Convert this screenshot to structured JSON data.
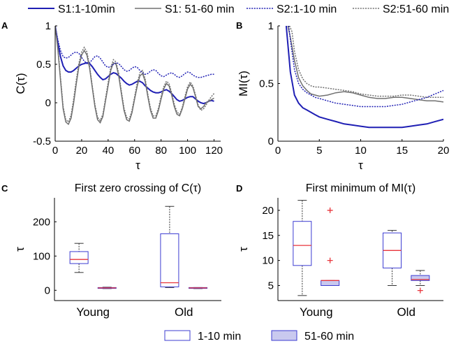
{
  "legend_top": [
    {
      "label": "S1:1-10min",
      "color": "#1f1fb4",
      "dash": "solid",
      "width": 2
    },
    {
      "label": "S1: 51-60 min",
      "color": "#707070",
      "dash": "solid",
      "width": 1.5
    },
    {
      "label": "S2:1-10 min",
      "color": "#1f1fb4",
      "dash": "dotted",
      "width": 1.5
    },
    {
      "label": "S2:51-60 min",
      "color": "#707070",
      "dash": "dotted",
      "width": 1.5
    }
  ],
  "legend_bottom": [
    {
      "label": "1-10 min",
      "fill": "#ffffff",
      "stroke": "#3c3cd2"
    },
    {
      "label": "51-60 min",
      "fill": "#c9c9ef",
      "stroke": "#3c3cd2"
    }
  ],
  "chart_data": [
    {
      "panel": "A",
      "type": "line",
      "title": "",
      "xlabel": "τ",
      "ylabel": "C(τ)",
      "xlim": [
        0,
        125
      ],
      "ylim": [
        -0.5,
        1
      ],
      "xticks": [
        0,
        20,
        40,
        60,
        80,
        100,
        120
      ],
      "yticks": [
        -0.5,
        0,
        0.5,
        1
      ],
      "series": [
        {
          "name": "S1:1-10min",
          "x": [
            0,
            2,
            4,
            6,
            8,
            10,
            12,
            14,
            16,
            18,
            20,
            22,
            24,
            26,
            28,
            30,
            32,
            34,
            36,
            38,
            40,
            42,
            44,
            46,
            48,
            50,
            52,
            54,
            56,
            58,
            60,
            62,
            64,
            66,
            68,
            70,
            72,
            74,
            76,
            78,
            80,
            82,
            84,
            86,
            88,
            90,
            92,
            94,
            96,
            98,
            100,
            102,
            104,
            106,
            108,
            110,
            112,
            114,
            116,
            118,
            120
          ],
          "y": [
            1,
            0.78,
            0.6,
            0.48,
            0.42,
            0.4,
            0.4,
            0.42,
            0.45,
            0.48,
            0.5,
            0.51,
            0.52,
            0.51,
            0.47,
            0.42,
            0.37,
            0.33,
            0.3,
            0.31,
            0.34,
            0.37,
            0.39,
            0.38,
            0.35,
            0.32,
            0.28,
            0.25,
            0.23,
            0.24,
            0.26,
            0.28,
            0.28,
            0.26,
            0.22,
            0.19,
            0.16,
            0.14,
            0.13,
            0.13,
            0.14,
            0.16,
            0.17,
            0.15,
            0.12,
            0.08,
            0.04,
            0.02,
            0.03,
            0.05,
            0.07,
            0.08,
            0.08,
            0.05,
            0.02,
            0.0,
            -0.01,
            0.0,
            0.02,
            0.03,
            0.02
          ]
        },
        {
          "name": "S1: 51-60 min",
          "x": [
            0,
            2,
            4,
            6,
            8,
            10,
            12,
            14,
            16,
            18,
            20,
            22,
            24,
            26,
            28,
            30,
            32,
            34,
            36,
            38,
            40,
            42,
            44,
            46,
            48,
            50,
            52,
            54,
            56,
            58,
            60,
            62,
            64,
            66,
            68,
            70,
            72,
            74,
            76,
            78,
            80,
            82,
            84,
            86,
            88,
            90,
            92,
            94,
            96,
            98,
            100,
            102,
            104,
            106,
            108,
            110,
            112,
            114,
            116,
            118,
            120
          ],
          "y": [
            1,
            0.7,
            0.3,
            -0.08,
            -0.25,
            -0.28,
            -0.2,
            0.0,
            0.25,
            0.48,
            0.62,
            0.68,
            0.62,
            0.45,
            0.2,
            -0.05,
            -0.22,
            -0.26,
            -0.18,
            0.02,
            0.22,
            0.42,
            0.52,
            0.5,
            0.35,
            0.12,
            -0.1,
            -0.22,
            -0.24,
            -0.13,
            0.05,
            0.22,
            0.35,
            0.38,
            0.28,
            0.08,
            -0.1,
            -0.2,
            -0.2,
            -0.1,
            0.05,
            0.18,
            0.25,
            0.22,
            0.1,
            -0.05,
            -0.15,
            -0.17,
            -0.08,
            0.05,
            0.18,
            0.24,
            0.2,
            0.08,
            -0.05,
            -0.08,
            -0.05,
            0.0,
            0.02,
            0.04,
            0.06
          ]
        },
        {
          "name": "S2:1-10 min",
          "x": [
            0,
            2,
            4,
            6,
            8,
            10,
            12,
            14,
            16,
            18,
            20,
            22,
            24,
            26,
            28,
            30,
            32,
            34,
            36,
            38,
            40,
            42,
            44,
            46,
            48,
            50,
            52,
            54,
            56,
            58,
            60,
            62,
            64,
            66,
            68,
            70,
            72,
            74,
            76,
            78,
            80,
            82,
            84,
            86,
            88,
            90,
            92,
            94,
            96,
            98,
            100,
            102,
            104,
            106,
            108,
            110,
            112,
            114,
            116,
            118,
            120
          ],
          "y": [
            1,
            0.82,
            0.68,
            0.6,
            0.58,
            0.59,
            0.62,
            0.65,
            0.66,
            0.64,
            0.59,
            0.54,
            0.51,
            0.52,
            0.56,
            0.6,
            0.61,
            0.58,
            0.53,
            0.48,
            0.46,
            0.47,
            0.5,
            0.52,
            0.51,
            0.47,
            0.43,
            0.41,
            0.42,
            0.45,
            0.47,
            0.46,
            0.42,
            0.39,
            0.37,
            0.38,
            0.41,
            0.43,
            0.42,
            0.38,
            0.35,
            0.34,
            0.36,
            0.38,
            0.39,
            0.37,
            0.34,
            0.33,
            0.35,
            0.38,
            0.4,
            0.39,
            0.36,
            0.34,
            0.33,
            0.33,
            0.34,
            0.35,
            0.36,
            0.37,
            0.37
          ]
        },
        {
          "name": "S2:51-60 min",
          "x": [
            0,
            2,
            4,
            6,
            8,
            10,
            12,
            14,
            16,
            18,
            20,
            22,
            24,
            26,
            28,
            30,
            32,
            34,
            36,
            38,
            40,
            42,
            44,
            46,
            48,
            50,
            52,
            54,
            56,
            58,
            60,
            62,
            64,
            66,
            68,
            70,
            72,
            74,
            76,
            78,
            80,
            82,
            84,
            86,
            88,
            90,
            92,
            94,
            96,
            98,
            100,
            102,
            104,
            106,
            108,
            110,
            112,
            114,
            116,
            118,
            120
          ],
          "y": [
            1,
            0.72,
            0.33,
            -0.05,
            -0.22,
            -0.25,
            -0.16,
            0.05,
            0.3,
            0.52,
            0.66,
            0.72,
            0.66,
            0.48,
            0.22,
            -0.02,
            -0.19,
            -0.23,
            -0.15,
            0.05,
            0.26,
            0.46,
            0.56,
            0.53,
            0.38,
            0.15,
            -0.07,
            -0.19,
            -0.21,
            -0.1,
            0.08,
            0.26,
            0.39,
            0.42,
            0.31,
            0.11,
            -0.07,
            -0.17,
            -0.17,
            -0.07,
            0.08,
            0.21,
            0.28,
            0.25,
            0.13,
            -0.02,
            -0.12,
            -0.15,
            -0.06,
            0.08,
            0.21,
            0.27,
            0.22,
            0.1,
            -0.03,
            -0.1,
            -0.08,
            -0.03,
            0.03,
            0.08,
            0.12
          ]
        }
      ]
    },
    {
      "panel": "B",
      "type": "line",
      "title": "",
      "xlabel": "τ",
      "ylabel": "MI(τ)",
      "xlim": [
        0,
        20
      ],
      "ylim": [
        0,
        1
      ],
      "xticks": [
        0,
        5,
        10,
        15,
        20
      ],
      "yticks": [
        0,
        0.5,
        1
      ],
      "series": [
        {
          "name": "S1:1-10min",
          "x": [
            1,
            1.5,
            2,
            2.5,
            3,
            3.5,
            4,
            4.5,
            5,
            6,
            7,
            8,
            9,
            10,
            11,
            12,
            13,
            14,
            15,
            16,
            17,
            18,
            19,
            20
          ],
          "y": [
            1,
            0.6,
            0.4,
            0.33,
            0.29,
            0.27,
            0.25,
            0.23,
            0.21,
            0.19,
            0.17,
            0.15,
            0.14,
            0.13,
            0.12,
            0.12,
            0.12,
            0.12,
            0.12,
            0.13,
            0.14,
            0.15,
            0.17,
            0.19
          ]
        },
        {
          "name": "S1: 51-60 min",
          "x": [
            1.2,
            1.5,
            2,
            2.5,
            3,
            3.5,
            4,
            4.5,
            5,
            6,
            7,
            8,
            9,
            10,
            11,
            12,
            13,
            14,
            15,
            16,
            17,
            18,
            19,
            20
          ],
          "y": [
            1,
            0.9,
            0.7,
            0.55,
            0.48,
            0.44,
            0.41,
            0.4,
            0.39,
            0.4,
            0.42,
            0.43,
            0.42,
            0.4,
            0.38,
            0.37,
            0.37,
            0.38,
            0.38,
            0.37,
            0.36,
            0.35,
            0.35,
            0.34
          ]
        },
        {
          "name": "S2:1-10 min",
          "x": [
            1.3,
            1.5,
            2,
            2.5,
            3,
            3.5,
            4,
            4.5,
            5,
            6,
            7,
            8,
            9,
            10,
            11,
            12,
            13,
            14,
            15,
            16,
            17,
            18,
            19,
            20
          ],
          "y": [
            1,
            0.88,
            0.62,
            0.5,
            0.45,
            0.42,
            0.4,
            0.38,
            0.37,
            0.35,
            0.33,
            0.32,
            0.31,
            0.3,
            0.3,
            0.3,
            0.3,
            0.31,
            0.32,
            0.34,
            0.36,
            0.38,
            0.41,
            0.44
          ]
        },
        {
          "name": "S2:51-60 min",
          "x": [
            1.4,
            1.7,
            2,
            2.5,
            3,
            3.5,
            4,
            4.5,
            5,
            6,
            7,
            8,
            9,
            10,
            11,
            12,
            13,
            14,
            15,
            16,
            17,
            18,
            19,
            20
          ],
          "y": [
            1,
            0.95,
            0.78,
            0.62,
            0.54,
            0.5,
            0.48,
            0.47,
            0.47,
            0.46,
            0.45,
            0.44,
            0.43,
            0.41,
            0.4,
            0.39,
            0.39,
            0.39,
            0.4,
            0.4,
            0.39,
            0.38,
            0.38,
            0.38
          ]
        }
      ]
    },
    {
      "panel": "C",
      "type": "box",
      "title": "First zero crossing of C(τ)",
      "xlabel": "",
      "ylabel": "τ",
      "ylim": [
        -30,
        270
      ],
      "yticks": [
        0,
        100,
        200
      ],
      "categories": [
        "Young",
        "Old"
      ],
      "boxes": [
        {
          "group": "Young",
          "condition": "1-10 min",
          "whisker_low": 52,
          "q1": 78,
          "median": 90,
          "q3": 113,
          "whisker_high": 137,
          "outliers": []
        },
        {
          "group": "Young",
          "condition": "51-60 min",
          "whisker_low": 5,
          "q1": 6,
          "median": 7,
          "q3": 8,
          "whisker_high": 9,
          "outliers": []
        },
        {
          "group": "Old",
          "condition": "1-10 min",
          "whisker_low": 8,
          "q1": 10,
          "median": 22,
          "q3": 165,
          "whisker_high": 245,
          "outliers": []
        },
        {
          "group": "Old",
          "condition": "51-60 min",
          "whisker_low": 5,
          "q1": 6,
          "median": 7,
          "q3": 8,
          "whisker_high": 8,
          "outliers": []
        }
      ]
    },
    {
      "panel": "D",
      "type": "box",
      "title": "First minimum of MI(τ)",
      "xlabel": "",
      "ylabel": "τ",
      "ylim": [
        2,
        22.5
      ],
      "yticks": [
        5,
        10,
        15,
        20
      ],
      "categories": [
        "Young",
        "Old"
      ],
      "boxes": [
        {
          "group": "Young",
          "condition": "1-10 min",
          "whisker_low": 3,
          "q1": 9,
          "median": 13,
          "q3": 17.8,
          "whisker_high": 22,
          "outliers": []
        },
        {
          "group": "Young",
          "condition": "51-60 min",
          "whisker_low": 5,
          "q1": 5,
          "median": 6,
          "q3": 6,
          "whisker_high": 6,
          "outliers": [
            10,
            20
          ]
        },
        {
          "group": "Old",
          "condition": "1-10 min",
          "whisker_low": 5,
          "q1": 8.5,
          "median": 12,
          "q3": 15.5,
          "whisker_high": 16,
          "outliers": []
        },
        {
          "group": "Old",
          "condition": "51-60 min",
          "whisker_low": 5,
          "q1": 6,
          "median": 6.2,
          "q3": 7,
          "whisker_high": 8,
          "outliers": [
            4
          ]
        }
      ]
    }
  ]
}
